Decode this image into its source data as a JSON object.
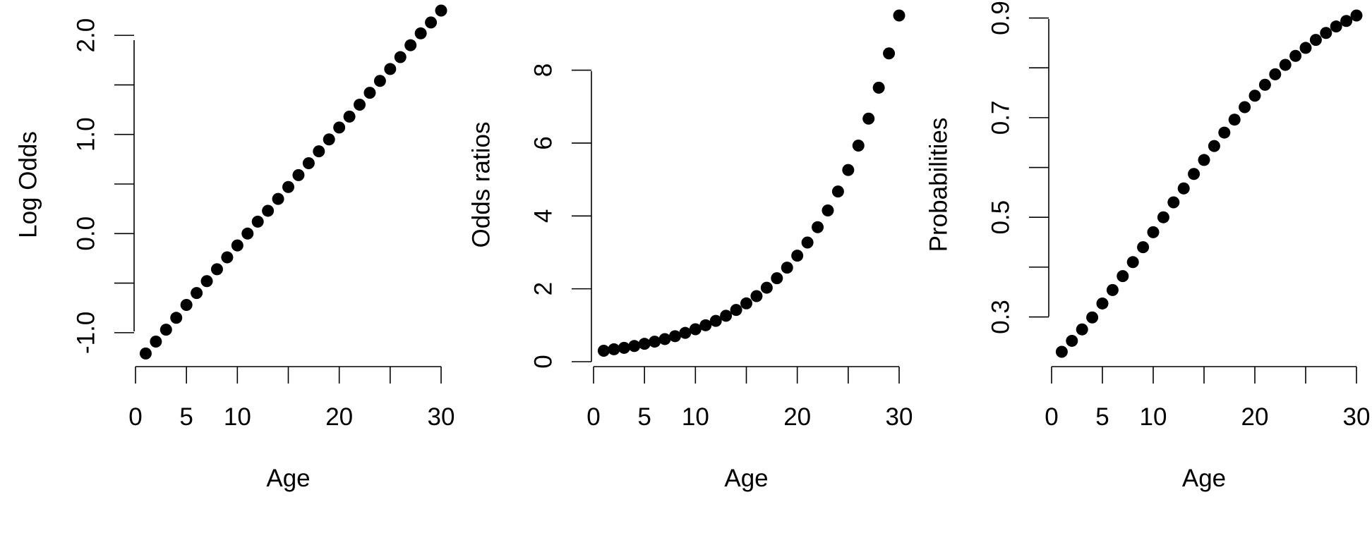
{
  "chart_data": [
    {
      "type": "scatter",
      "xlabel": "Age",
      "ylabel": "Log Odds",
      "xlim": [
        0,
        30
      ],
      "ylim": [
        -1.2,
        2.2
      ],
      "xticks": [
        0,
        5,
        10,
        15,
        20,
        25,
        30
      ],
      "xtick_labels": [
        "0",
        "5",
        "10",
        "",
        "20",
        "",
        "30"
      ],
      "yticks": [
        -1.0,
        -0.5,
        0.0,
        0.5,
        1.0,
        1.5,
        2.0
      ],
      "ytick_labels": [
        "-1.0",
        "",
        "0.0",
        "",
        "1.0",
        "",
        "2.0"
      ],
      "grid": false,
      "x": [
        1,
        2,
        3,
        4,
        5,
        6,
        7,
        8,
        9,
        10,
        11,
        12,
        13,
        14,
        15,
        16,
        17,
        18,
        19,
        20,
        21,
        22,
        23,
        24,
        25,
        26,
        27,
        28,
        29,
        30
      ],
      "y": [
        -1.21,
        -1.09,
        -0.97,
        -0.85,
        -0.72,
        -0.6,
        -0.48,
        -0.36,
        -0.24,
        -0.12,
        0.0,
        0.12,
        0.23,
        0.35,
        0.47,
        0.59,
        0.71,
        0.83,
        0.95,
        1.07,
        1.18,
        1.3,
        1.42,
        1.54,
        1.66,
        1.78,
        1.9,
        2.02,
        2.13,
        2.25
      ]
    },
    {
      "type": "scatter",
      "xlabel": "Age",
      "ylabel": "Odds ratios",
      "xlim": [
        0,
        30
      ],
      "ylim": [
        0,
        9.5
      ],
      "xticks": [
        0,
        5,
        10,
        15,
        20,
        25,
        30
      ],
      "xtick_labels": [
        "0",
        "5",
        "10",
        "",
        "20",
        "",
        "30"
      ],
      "yticks": [
        0,
        2,
        4,
        6,
        8
      ],
      "ytick_labels": [
        "0",
        "2",
        "4",
        "6",
        "8"
      ],
      "grid": false,
      "x": [
        1,
        2,
        3,
        4,
        5,
        6,
        7,
        8,
        9,
        10,
        11,
        12,
        13,
        14,
        15,
        16,
        17,
        18,
        19,
        20,
        21,
        22,
        23,
        24,
        25,
        26,
        27,
        28,
        29,
        30
      ],
      "y": [
        0.3,
        0.34,
        0.38,
        0.43,
        0.49,
        0.55,
        0.62,
        0.7,
        0.79,
        0.89,
        1.0,
        1.12,
        1.26,
        1.42,
        1.6,
        1.8,
        2.03,
        2.29,
        2.58,
        2.91,
        3.27,
        3.69,
        4.15,
        4.67,
        5.26,
        5.93,
        6.67,
        7.52,
        8.46,
        9.5
      ]
    },
    {
      "type": "scatter",
      "xlabel": "Age",
      "ylabel": "Probabilities",
      "xlim": [
        0,
        30
      ],
      "ylim": [
        0.23,
        0.905
      ],
      "xticks": [
        0,
        5,
        10,
        15,
        20,
        25,
        30
      ],
      "xtick_labels": [
        "0",
        "5",
        "10",
        "",
        "20",
        "",
        "30"
      ],
      "yticks": [
        0.3,
        0.4,
        0.5,
        0.6,
        0.7,
        0.8,
        0.9
      ],
      "ytick_labels": [
        "0.3",
        "",
        "0.5",
        "",
        "0.7",
        "",
        "0.9"
      ],
      "grid": false,
      "x": [
        1,
        2,
        3,
        4,
        5,
        6,
        7,
        8,
        9,
        10,
        11,
        12,
        13,
        14,
        15,
        16,
        17,
        18,
        19,
        20,
        21,
        22,
        23,
        24,
        25,
        26,
        27,
        28,
        29,
        30
      ],
      "y": [
        0.23,
        0.252,
        0.275,
        0.299,
        0.327,
        0.354,
        0.382,
        0.41,
        0.44,
        0.47,
        0.5,
        0.53,
        0.558,
        0.587,
        0.615,
        0.643,
        0.67,
        0.696,
        0.721,
        0.744,
        0.766,
        0.787,
        0.806,
        0.824,
        0.84,
        0.856,
        0.87,
        0.883,
        0.894,
        0.905
      ]
    }
  ]
}
